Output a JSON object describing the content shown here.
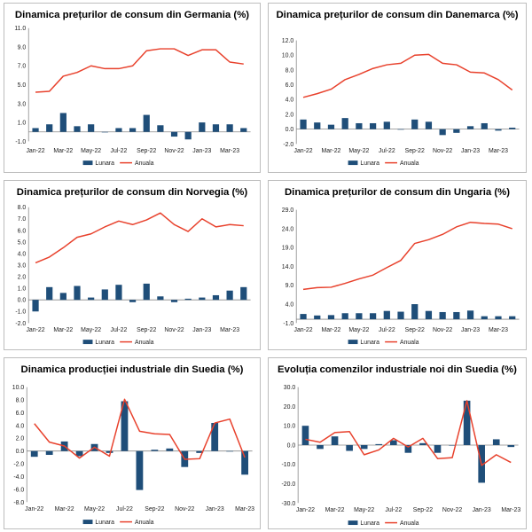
{
  "colors": {
    "bar": "#1f4e79",
    "line": "#e8412c",
    "axis": "#888888"
  },
  "chart_data": [
    {
      "type": "bar+line",
      "title": "Dinamica prețurilor de consum din Germania (%)",
      "x_labels": [
        "Jan-22",
        "",
        "Mar-22",
        "",
        "May-22",
        "",
        "Jul-22",
        "",
        "Sep-22",
        "",
        "Nov-22",
        "",
        "Jan-23",
        "",
        "Mar-23",
        ""
      ],
      "y_ticks": [
        "11.0",
        "9.0",
        "7.0",
        "5.0",
        "3.0",
        "1.0",
        "-1.0"
      ],
      "ylim": [
        -1,
        11
      ],
      "series": [
        {
          "name": "Lunara",
          "kind": "bar",
          "values": [
            0.4,
            0.8,
            2.0,
            0.6,
            0.8,
            0.0,
            0.4,
            0.4,
            1.8,
            0.7,
            -0.5,
            -0.8,
            1.0,
            0.8,
            0.8,
            0.4
          ]
        },
        {
          "name": "Anuala",
          "kind": "line",
          "values": [
            4.2,
            4.3,
            5.9,
            6.3,
            7.0,
            6.7,
            6.7,
            7.0,
            8.6,
            8.8,
            8.8,
            8.1,
            8.7,
            8.7,
            7.4,
            7.2
          ]
        }
      ],
      "legend": [
        "Lunara",
        "Anuala"
      ]
    },
    {
      "type": "bar+line",
      "title": "Dinamica prețurilor de consum din Danemarca (%)",
      "x_labels": [
        "Jan-22",
        "",
        "Mar-22",
        "",
        "May-22",
        "",
        "Jul-22",
        "",
        "Sep-22",
        "",
        "Nov-22",
        "",
        "Jan-23",
        "",
        "Mar-23",
        ""
      ],
      "y_ticks": [
        "12.0",
        "10.0",
        "8.0",
        "6.0",
        "4.0",
        "2.0",
        "0.0",
        "-2.0"
      ],
      "ylim": [
        -2,
        12
      ],
      "series": [
        {
          "name": "Lunara",
          "kind": "bar",
          "values": [
            1.3,
            0.9,
            0.6,
            1.5,
            0.8,
            0.8,
            1.0,
            0.0,
            1.3,
            1.0,
            -0.8,
            -0.5,
            0.4,
            0.8,
            -0.2,
            0.2
          ]
        },
        {
          "name": "Anuala",
          "kind": "line",
          "values": [
            4.3,
            4.8,
            5.4,
            6.7,
            7.4,
            8.2,
            8.7,
            8.9,
            10.0,
            10.1,
            8.9,
            8.7,
            7.7,
            7.6,
            6.7,
            5.3
          ]
        }
      ],
      "legend": [
        "Lunara",
        "Anuala"
      ]
    },
    {
      "type": "bar+line",
      "title": "Dinamica prețurilor de consum din Norvegia (%)",
      "x_labels": [
        "Jan-22",
        "",
        "Mar-22",
        "",
        "May-22",
        "",
        "Jul-22",
        "",
        "Sep-22",
        "",
        "Nov-22",
        "",
        "Jan-23",
        "",
        "Mar-23",
        ""
      ],
      "y_ticks": [
        "8.0",
        "7.0",
        "6.0",
        "5.0",
        "4.0",
        "3.0",
        "2.0",
        "1.0",
        "0.0",
        "-1.0",
        "-2.0"
      ],
      "ylim": [
        -2,
        8
      ],
      "series": [
        {
          "name": "Lunara",
          "kind": "bar",
          "values": [
            -1.0,
            1.1,
            0.6,
            1.2,
            0.2,
            0.9,
            1.3,
            -0.2,
            1.4,
            0.3,
            -0.2,
            0.1,
            0.2,
            0.4,
            0.8,
            1.1
          ]
        },
        {
          "name": "Anuala",
          "kind": "line",
          "values": [
            3.2,
            3.7,
            4.5,
            5.4,
            5.7,
            6.3,
            6.8,
            6.5,
            6.9,
            7.5,
            6.5,
            5.9,
            7.0,
            6.3,
            6.5,
            6.4
          ]
        }
      ],
      "legend": [
        "Lunara",
        "Anuala"
      ]
    },
    {
      "type": "bar+line",
      "title": "Dinamica prețurilor de consum din Ungaria (%)",
      "x_labels": [
        "Jan-22",
        "",
        "Mar-22",
        "",
        "May-22",
        "",
        "Jul-22",
        "",
        "Sep-22",
        "",
        "Nov-22",
        "",
        "Jan-23",
        "",
        "Mar-23",
        ""
      ],
      "y_ticks": [
        "29.0",
        "24.0",
        "19.0",
        "14.0",
        "9.0",
        "4.0",
        "-1.0"
      ],
      "ylim": [
        -1,
        29
      ],
      "series": [
        {
          "name": "Lunara",
          "kind": "bar",
          "values": [
            1.4,
            1.0,
            1.1,
            1.6,
            1.6,
            1.6,
            2.2,
            2.0,
            4.0,
            2.2,
            1.9,
            1.9,
            2.3,
            0.8,
            0.8,
            0.8
          ]
        },
        {
          "name": "Anuala",
          "kind": "line",
          "values": [
            7.9,
            8.4,
            8.5,
            9.5,
            10.7,
            11.7,
            13.7,
            15.6,
            20.1,
            21.1,
            22.5,
            24.5,
            25.7,
            25.4,
            25.2,
            24.0
          ]
        }
      ],
      "legend": [
        "Lunara",
        "Anuala"
      ]
    },
    {
      "type": "bar+line",
      "title": "Dinamica producției industriale din Suedia (%)",
      "x_labels": [
        "Jan-22",
        "",
        "Mar-22",
        "",
        "May-22",
        "",
        "Jul-22",
        "",
        "Sep-22",
        "",
        "Nov-22",
        "",
        "Jan-23",
        "",
        "Mar-23"
      ],
      "y_ticks": [
        "10.0",
        "8.0",
        "6.0",
        "4.0",
        "2.0",
        "0.0",
        "-2.0",
        "-4.0",
        "-6.0",
        "-8.0"
      ],
      "ylim": [
        -8,
        10
      ],
      "series": [
        {
          "name": "Lunara",
          "kind": "bar",
          "values": [
            -0.9,
            -0.6,
            1.5,
            -0.8,
            1.1,
            -0.3,
            7.8,
            -6.1,
            0.2,
            0.4,
            -2.5,
            -0.3,
            4.4,
            0.0,
            -3.7
          ]
        },
        {
          "name": "Anuala",
          "kind": "line",
          "values": [
            4.3,
            1.4,
            0.8,
            -1.1,
            0.6,
            -0.8,
            8.1,
            3.1,
            2.7,
            2.6,
            -1.3,
            -1.2,
            4.4,
            5.0,
            -1.0
          ]
        }
      ],
      "legend": [
        "Lunara",
        "Anuala"
      ]
    },
    {
      "type": "bar+line",
      "title": "Evoluția comenzilor industriale noi din Suedia (%)",
      "x_labels": [
        "Jan-22",
        "",
        "Mar-22",
        "",
        "May-22",
        "",
        "Jul-22",
        "",
        "Sep-22",
        "",
        "Nov-22",
        "",
        "Jan-23",
        "",
        "Mar-23"
      ],
      "y_ticks": [
        "30.0",
        "20.0",
        "10.0",
        "0.0",
        "-10.0",
        "-20.0",
        "-30.0"
      ],
      "ylim": [
        -30,
        30
      ],
      "series": [
        {
          "name": "Lunara",
          "kind": "bar",
          "values": [
            10.0,
            -2.0,
            4.5,
            -3.0,
            -2.0,
            0.5,
            2.5,
            -4.0,
            1.0,
            -4.0,
            0.0,
            23.0,
            -19.5,
            3.0,
            -1.0
          ]
        },
        {
          "name": "Anuala",
          "kind": "line",
          "values": [
            3.0,
            1.5,
            6.5,
            7.0,
            -5.0,
            -2.5,
            3.5,
            -1.0,
            3.5,
            -7.0,
            -6.5,
            23.0,
            -10.5,
            -5.0,
            -9.0
          ]
        }
      ],
      "legend": [
        "Lunara",
        "Anuala"
      ]
    }
  ]
}
